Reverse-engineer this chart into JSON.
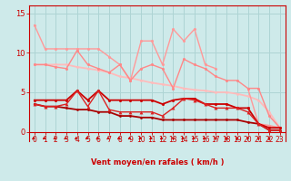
{
  "background_color": "#ceeaea",
  "grid_color": "#aed4d4",
  "text_color": "#cc0000",
  "xlabel": "Vent moyen/en rafales ( km/h )",
  "xlim": [
    -0.5,
    23.5
  ],
  "ylim": [
    -1.2,
    16
  ],
  "yticks": [
    0,
    5,
    10,
    15
  ],
  "xticks": [
    0,
    1,
    2,
    3,
    4,
    5,
    6,
    7,
    8,
    9,
    10,
    11,
    12,
    13,
    14,
    15,
    16,
    17,
    18,
    19,
    20,
    21,
    22,
    23
  ],
  "series": [
    {
      "name": "light_pink_top_jagged",
      "x": [
        0,
        1,
        2,
        3,
        4,
        5,
        6,
        7,
        8,
        9,
        10,
        11,
        12,
        13,
        14,
        15,
        16,
        17,
        18,
        19,
        20,
        21,
        22,
        23
      ],
      "y": [
        13.5,
        10.5,
        10.5,
        10.5,
        10.5,
        10.5,
        10.5,
        9.5,
        8.5,
        6.5,
        11.5,
        11.5,
        8.5,
        13.0,
        11.5,
        13.0,
        8.5,
        8.0,
        null,
        null,
        5.5,
        1.0,
        0.8,
        0.5
      ],
      "color": "#ff9999",
      "linewidth": 1.0,
      "marker": "o",
      "markersize": 2.2,
      "zorder": 3
    },
    {
      "name": "light_pink_diagonal_smooth",
      "x": [
        0,
        1,
        2,
        3,
        4,
        5,
        6,
        7,
        8,
        9,
        10,
        11,
        12,
        13,
        14,
        15,
        16,
        17,
        18,
        19,
        20,
        21,
        22,
        23
      ],
      "y": [
        8.5,
        8.5,
        8.5,
        8.5,
        8.2,
        8.0,
        7.8,
        7.5,
        7.0,
        6.8,
        6.5,
        6.2,
        6.0,
        5.8,
        5.5,
        5.3,
        5.2,
        5.0,
        5.0,
        4.8,
        4.5,
        4.0,
        2.5,
        0.5
      ],
      "color": "#ffbbbb",
      "linewidth": 1.3,
      "marker": "o",
      "markersize": 2.0,
      "zorder": 2
    },
    {
      "name": "medium_pink_wavy",
      "x": [
        0,
        1,
        2,
        3,
        4,
        5,
        6,
        7,
        8,
        9,
        10,
        11,
        12,
        13,
        14,
        15,
        16,
        17,
        18,
        19,
        20,
        21,
        22,
        23
      ],
      "y": [
        8.5,
        8.5,
        8.2,
        8.0,
        10.3,
        8.5,
        8.0,
        7.5,
        8.5,
        6.5,
        8.0,
        8.5,
        8.0,
        5.5,
        9.2,
        8.5,
        8.0,
        7.0,
        6.5,
        6.5,
        5.5,
        5.5,
        2.0,
        0.5
      ],
      "color": "#ff8888",
      "linewidth": 1.0,
      "marker": "o",
      "markersize": 2.2,
      "zorder": 4
    },
    {
      "name": "dark_red_flat",
      "x": [
        0,
        1,
        2,
        3,
        4,
        5,
        6,
        7,
        8,
        9,
        10,
        11,
        12,
        13,
        14,
        15,
        16,
        17,
        18,
        19,
        20,
        21,
        22,
        23
      ],
      "y": [
        4.0,
        4.0,
        4.0,
        4.0,
        5.2,
        4.0,
        5.2,
        4.0,
        4.0,
        4.0,
        4.0,
        4.0,
        3.5,
        4.0,
        4.2,
        4.2,
        3.5,
        3.5,
        3.5,
        3.0,
        3.0,
        1.0,
        0.5,
        0.5
      ],
      "color": "#cc0000",
      "linewidth": 1.3,
      "marker": "o",
      "markersize": 2.2,
      "zorder": 5
    },
    {
      "name": "dark_red_triangle_wavy",
      "x": [
        0,
        1,
        2,
        3,
        4,
        5,
        6,
        7,
        8,
        9,
        10,
        11,
        12,
        13,
        14,
        15,
        16,
        17,
        18,
        19,
        20,
        21,
        22,
        23
      ],
      "y": [
        3.5,
        3.2,
        3.2,
        3.5,
        5.2,
        3.2,
        5.2,
        2.8,
        2.5,
        2.5,
        2.5,
        2.5,
        2.0,
        3.0,
        4.2,
        4.0,
        3.5,
        3.0,
        3.0,
        3.0,
        2.5,
        1.0,
        0.2,
        0.2
      ],
      "color": "#dd2222",
      "linewidth": 1.0,
      "marker": "^",
      "markersize": 2.8,
      "zorder": 6
    },
    {
      "name": "dark_red_descending",
      "x": [
        0,
        1,
        2,
        3,
        4,
        5,
        6,
        7,
        8,
        9,
        10,
        11,
        12,
        13,
        14,
        15,
        16,
        17,
        18,
        19,
        20,
        21,
        22,
        23
      ],
      "y": [
        3.5,
        3.2,
        3.2,
        3.0,
        2.8,
        2.8,
        2.5,
        2.5,
        2.0,
        2.0,
        1.8,
        1.8,
        1.5,
        1.5,
        1.5,
        1.5,
        1.5,
        1.5,
        1.5,
        1.5,
        1.2,
        1.0,
        0.2,
        0.2
      ],
      "color": "#aa0000",
      "linewidth": 1.3,
      "marker": "o",
      "markersize": 2.0,
      "zorder": 4
    }
  ],
  "wind_arrows": [
    {
      "x": 0,
      "type": "sw"
    },
    {
      "x": 1,
      "type": "sw"
    },
    {
      "x": 2,
      "type": "sw"
    },
    {
      "x": 3,
      "type": "sw"
    },
    {
      "x": 4,
      "type": "sw"
    },
    {
      "x": 5,
      "type": "sw"
    },
    {
      "x": 6,
      "type": "sw"
    },
    {
      "x": 7,
      "type": "sw"
    },
    {
      "x": 8,
      "type": "sw"
    },
    {
      "x": 9,
      "type": "sw"
    },
    {
      "x": 10,
      "type": "sw"
    },
    {
      "x": 11,
      "type": "sw"
    },
    {
      "x": 12,
      "type": "sw"
    },
    {
      "x": 13,
      "type": "s"
    },
    {
      "x": 14,
      "type": "sw"
    },
    {
      "x": 15,
      "type": "sw"
    },
    {
      "x": 16,
      "type": "sw"
    },
    {
      "x": 17,
      "type": "s"
    },
    {
      "x": 18,
      "type": "s"
    },
    {
      "x": 19,
      "type": "s"
    },
    {
      "x": 20,
      "type": "s"
    },
    {
      "x": 21,
      "type": "s"
    },
    {
      "x": 22,
      "type": "s"
    }
  ]
}
